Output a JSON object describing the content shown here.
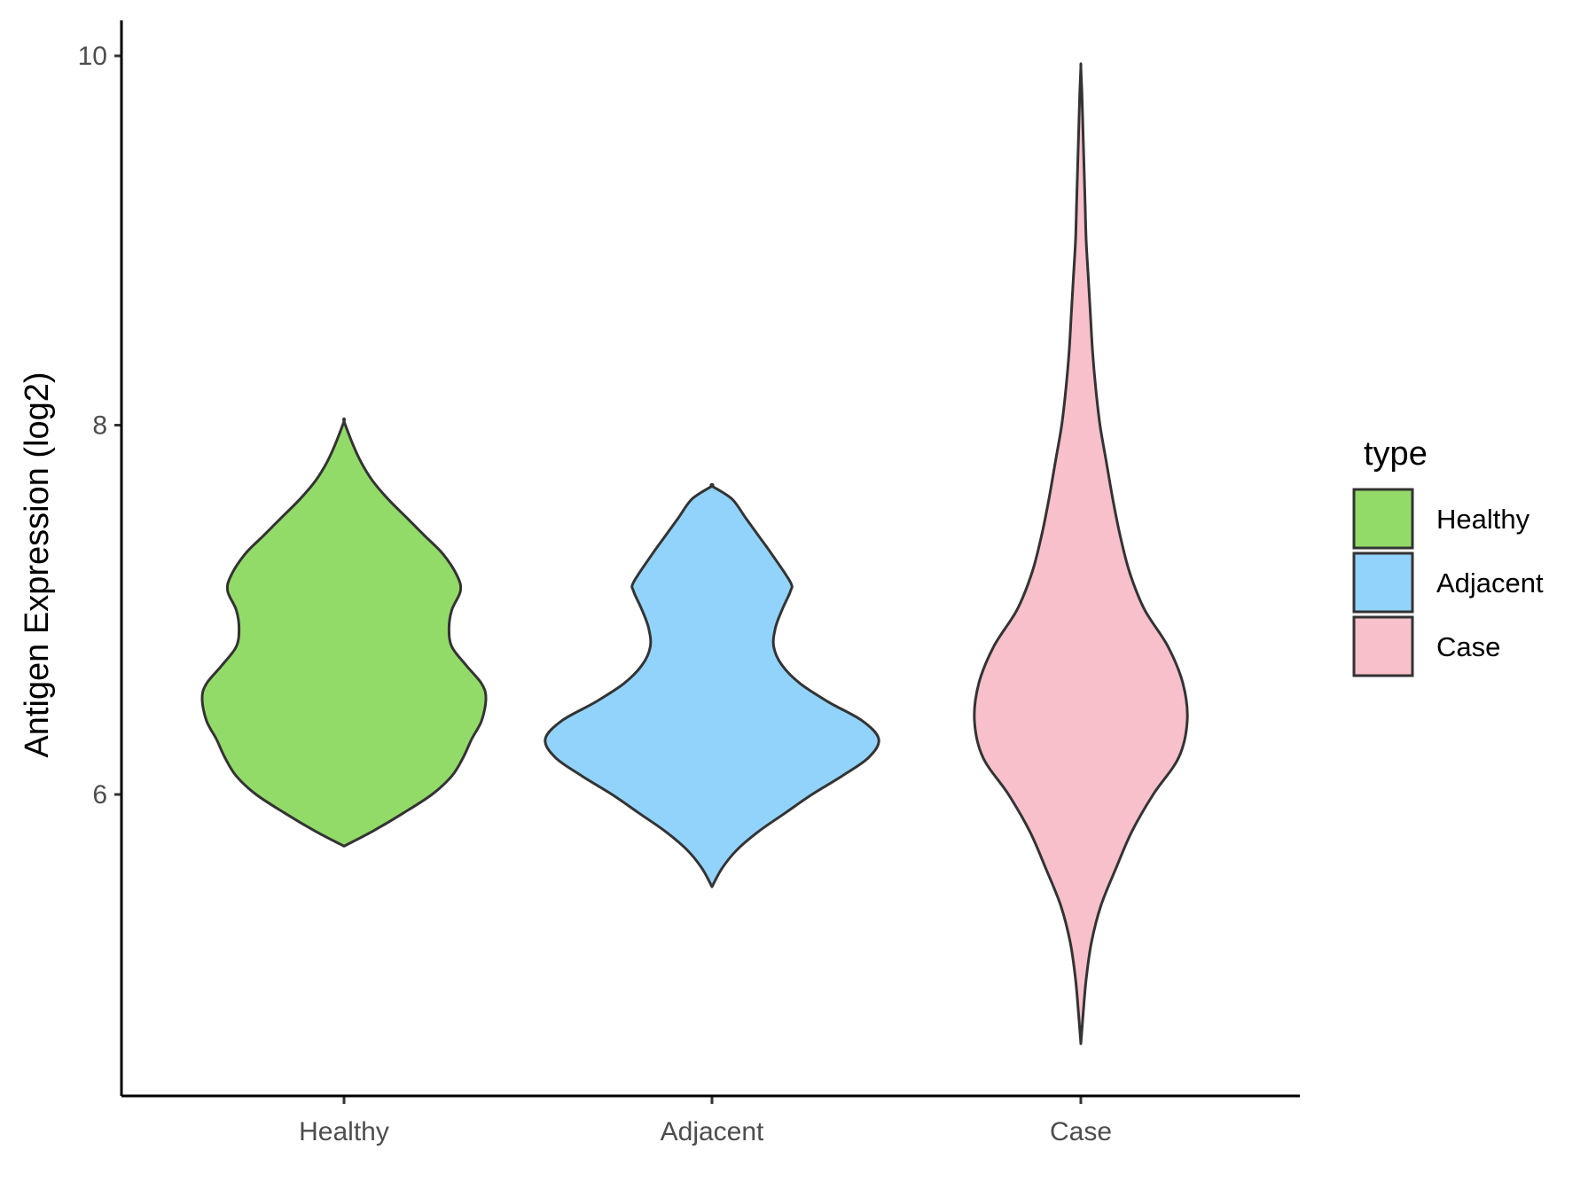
{
  "chart_data": {
    "type": "violin",
    "title": "",
    "xlabel": "",
    "ylabel": "Antigen Expression (log2)",
    "ylim": [
      4.57,
      10.2
    ],
    "yticks": [
      6,
      8,
      10
    ],
    "categories": [
      "Healthy",
      "Adjacent",
      "Case"
    ],
    "grid": false,
    "legend": {
      "title": "type",
      "position": "right",
      "entries": [
        "Healthy",
        "Adjacent",
        "Case"
      ]
    },
    "series": [
      {
        "category": "Healthy",
        "color": "#93DB69",
        "min": 5.72,
        "max": 8.02,
        "profile": [
          [
            5.72,
            0.0
          ],
          [
            5.8,
            0.2
          ],
          [
            5.9,
            0.42
          ],
          [
            6.0,
            0.62
          ],
          [
            6.1,
            0.76
          ],
          [
            6.2,
            0.84
          ],
          [
            6.3,
            0.9
          ],
          [
            6.4,
            0.97
          ],
          [
            6.52,
            1.0
          ],
          [
            6.6,
            0.97
          ],
          [
            6.7,
            0.86
          ],
          [
            6.8,
            0.76
          ],
          [
            6.9,
            0.74
          ],
          [
            7.0,
            0.76
          ],
          [
            7.1,
            0.82
          ],
          [
            7.18,
            0.8
          ],
          [
            7.3,
            0.7
          ],
          [
            7.4,
            0.57
          ],
          [
            7.5,
            0.44
          ],
          [
            7.6,
            0.31
          ],
          [
            7.7,
            0.2
          ],
          [
            7.8,
            0.12
          ],
          [
            7.9,
            0.06
          ],
          [
            8.02,
            0.0
          ]
        ]
      },
      {
        "category": "Adjacent",
        "color": "#92D3FB",
        "min": 5.5,
        "max": 7.67,
        "profile": [
          [
            5.5,
            0.0
          ],
          [
            5.6,
            0.06
          ],
          [
            5.7,
            0.15
          ],
          [
            5.8,
            0.28
          ],
          [
            5.9,
            0.44
          ],
          [
            6.0,
            0.6
          ],
          [
            6.1,
            0.78
          ],
          [
            6.2,
            0.94
          ],
          [
            6.3,
            1.0
          ],
          [
            6.4,
            0.9
          ],
          [
            6.5,
            0.7
          ],
          [
            6.6,
            0.53
          ],
          [
            6.7,
            0.42
          ],
          [
            6.8,
            0.37
          ],
          [
            6.9,
            0.38
          ],
          [
            7.0,
            0.42
          ],
          [
            7.1,
            0.47
          ],
          [
            7.15,
            0.47
          ],
          [
            7.3,
            0.36
          ],
          [
            7.4,
            0.28
          ],
          [
            7.5,
            0.2
          ],
          [
            7.6,
            0.12
          ],
          [
            7.67,
            0.0
          ]
        ]
      },
      {
        "category": "Case",
        "color": "#F7C0CB",
        "min": 4.65,
        "max": 9.94,
        "profile": [
          [
            4.65,
            0.0
          ],
          [
            4.8,
            0.02
          ],
          [
            5.0,
            0.05
          ],
          [
            5.2,
            0.1
          ],
          [
            5.4,
            0.19
          ],
          [
            5.6,
            0.33
          ],
          [
            5.8,
            0.48
          ],
          [
            6.0,
            0.68
          ],
          [
            6.2,
            0.92
          ],
          [
            6.4,
            1.0
          ],
          [
            6.6,
            0.96
          ],
          [
            6.8,
            0.82
          ],
          [
            7.0,
            0.6
          ],
          [
            7.2,
            0.46
          ],
          [
            7.4,
            0.37
          ],
          [
            7.6,
            0.3
          ],
          [
            7.8,
            0.24
          ],
          [
            8.0,
            0.18
          ],
          [
            8.2,
            0.14
          ],
          [
            8.4,
            0.11
          ],
          [
            8.6,
            0.09
          ],
          [
            8.8,
            0.07
          ],
          [
            9.0,
            0.05
          ],
          [
            9.2,
            0.04
          ],
          [
            9.4,
            0.03
          ],
          [
            9.6,
            0.02
          ],
          [
            9.8,
            0.01
          ],
          [
            9.94,
            0.0
          ]
        ]
      }
    ]
  }
}
